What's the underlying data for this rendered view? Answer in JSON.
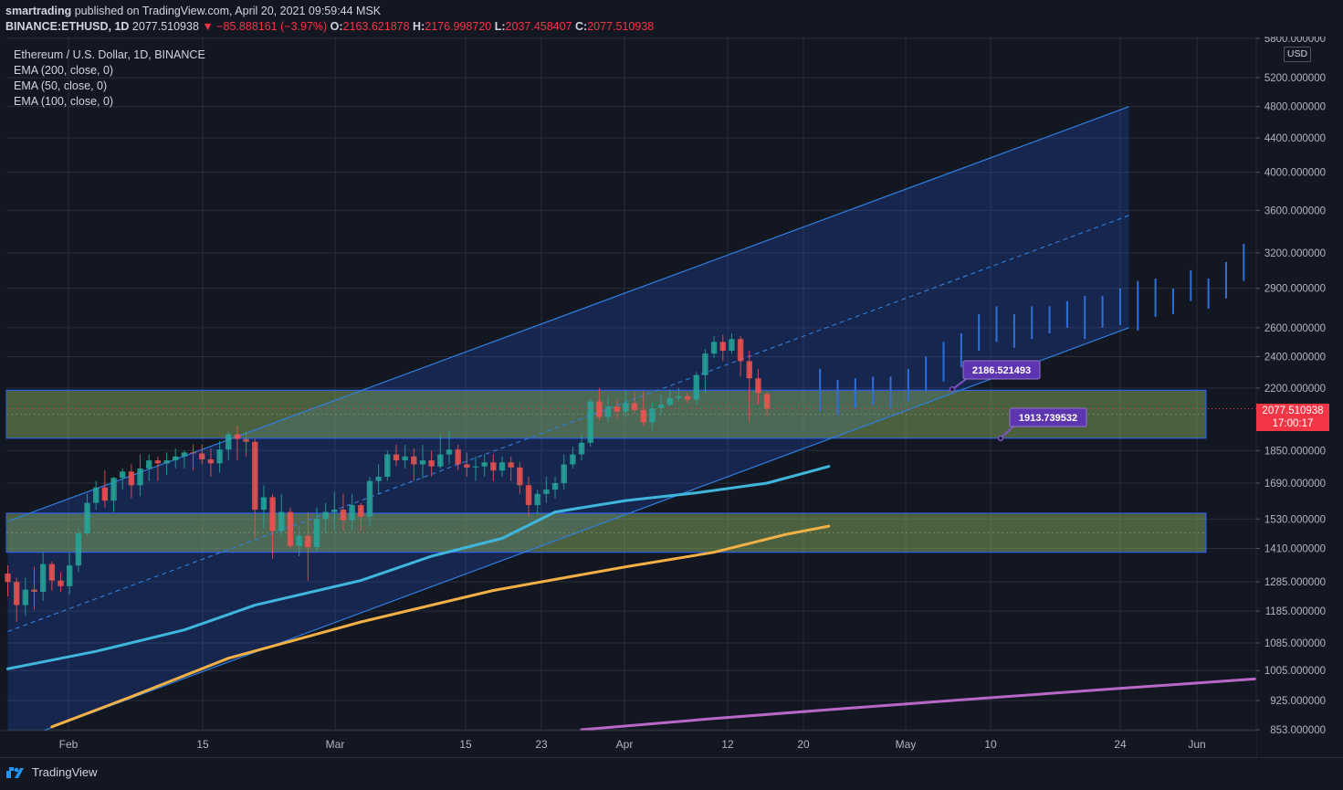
{
  "header": {
    "author": "smartrading",
    "published_text": " published on TradingView.com, April 20, 2021 09:59:44 MSK",
    "symbol": "BINANCE:ETHUSD, 1D",
    "last": "2077.510938",
    "change": "▼ −85.888161 (−3.97%)",
    "o_label": "O:",
    "o_value": "2163.621878",
    "h_label": "H:",
    "h_value": "2176.998720",
    "l_label": "L:",
    "l_value": "2037.458407",
    "c_label": "C:",
    "c_value": "2077.510938"
  },
  "legend": {
    "title": "Ethereum / U.S. Dollar, 1D, BINANCE",
    "ema200": "EMA (200, close, 0)",
    "ema50": "EMA (50, close, 0)",
    "ema100": "EMA (100, close, 0)"
  },
  "price_axis": {
    "currency": "USD",
    "ticks": [
      "853.000000",
      "925.000000",
      "1005.000000",
      "1085.000000",
      "1185.000000",
      "1285.000000",
      "1410.000000",
      "1530.000000",
      "1690.000000",
      "1850.000000",
      "2200.000000",
      "2400.000000",
      "2600.000000",
      "2900.000000",
      "3200.000000",
      "3600.000000",
      "4000.000000",
      "4400.000000",
      "4800.000000",
      "5200.000000",
      "5800.000000"
    ],
    "current_price": "2077.510938",
    "countdown": "17:00:17"
  },
  "time_axis": {
    "labels": [
      "Feb",
      "15",
      "Mar",
      "15",
      "23",
      "Apr",
      "12",
      "20",
      "May",
      "10",
      "24",
      "Jun"
    ]
  },
  "annotations": {
    "upper_label": "2186.521493",
    "lower_label": "1913.739532"
  },
  "footer": {
    "brand": "TradingView"
  },
  "colors": {
    "background": "#131722",
    "up": "#26a69a",
    "down": "#ef5350",
    "ema200": "#ba68c8",
    "ema50": "#3fb6dc",
    "ema100": "#f2b045",
    "channel": "#2962ff",
    "zone": "#6b8a48",
    "label_bg": "#5e35b1"
  },
  "chart_data": {
    "type": "candlestick",
    "symbol": "BINANCE:ETHUSD",
    "interval": "1D",
    "y_scale": "log",
    "ylim": [
      853,
      5800
    ],
    "x_axis_labels": [
      "Feb",
      "15",
      "Mar",
      "15",
      "23",
      "Apr",
      "12",
      "20",
      "May",
      "10",
      "24",
      "Jun"
    ],
    "candles_start": "2021-01-26",
    "ohlc": [
      [
        1315,
        1345,
        1235,
        1285
      ],
      [
        1285,
        1300,
        1150,
        1205
      ],
      [
        1205,
        1300,
        1170,
        1258
      ],
      [
        1258,
        1340,
        1190,
        1250
      ],
      [
        1250,
        1395,
        1220,
        1350
      ],
      [
        1350,
        1360,
        1255,
        1290
      ],
      [
        1290,
        1320,
        1250,
        1270
      ],
      [
        1270,
        1395,
        1240,
        1345
      ],
      [
        1345,
        1490,
        1320,
        1470
      ],
      [
        1470,
        1640,
        1460,
        1600
      ],
      [
        1600,
        1700,
        1570,
        1670
      ],
      [
        1670,
        1750,
        1580,
        1610
      ],
      [
        1610,
        1720,
        1560,
        1715
      ],
      [
        1715,
        1760,
        1660,
        1745
      ],
      [
        1745,
        1780,
        1620,
        1680
      ],
      [
        1680,
        1830,
        1630,
        1760
      ],
      [
        1760,
        1830,
        1700,
        1800
      ],
      [
        1800,
        1820,
        1700,
        1785
      ],
      [
        1785,
        1840,
        1730,
        1800
      ],
      [
        1800,
        1860,
        1760,
        1820
      ],
      [
        1820,
        1850,
        1760,
        1840
      ],
      [
        1840,
        1880,
        1750,
        1835
      ],
      [
        1835,
        1880,
        1780,
        1805
      ],
      [
        1805,
        1860,
        1720,
        1785
      ],
      [
        1785,
        1900,
        1740,
        1855
      ],
      [
        1855,
        1950,
        1800,
        1935
      ],
      [
        1935,
        1980,
        1800,
        1910
      ],
      [
        1910,
        1950,
        1820,
        1895
      ],
      [
        1895,
        1910,
        1450,
        1570
      ],
      [
        1570,
        1680,
        1490,
        1625
      ],
      [
        1625,
        1640,
        1370,
        1480
      ],
      [
        1480,
        1640,
        1460,
        1560
      ],
      [
        1560,
        1580,
        1410,
        1420
      ],
      [
        1420,
        1500,
        1380,
        1460
      ],
      [
        1460,
        1560,
        1290,
        1415
      ],
      [
        1415,
        1580,
        1400,
        1530
      ],
      [
        1530,
        1600,
        1470,
        1560
      ],
      [
        1560,
        1650,
        1480,
        1570
      ],
      [
        1570,
        1640,
        1480,
        1525
      ],
      [
        1525,
        1640,
        1480,
        1590
      ],
      [
        1590,
        1600,
        1480,
        1540
      ],
      [
        1540,
        1720,
        1500,
        1700
      ],
      [
        1700,
        1780,
        1640,
        1720
      ],
      [
        1720,
        1850,
        1700,
        1830
      ],
      [
        1830,
        1880,
        1770,
        1800
      ],
      [
        1800,
        1880,
        1760,
        1820
      ],
      [
        1820,
        1860,
        1700,
        1780
      ],
      [
        1780,
        1880,
        1710,
        1800
      ],
      [
        1800,
        1850,
        1720,
        1770
      ],
      [
        1770,
        1940,
        1760,
        1830
      ],
      [
        1830,
        1950,
        1780,
        1855
      ],
      [
        1855,
        1880,
        1750,
        1780
      ],
      [
        1780,
        1840,
        1720,
        1765
      ],
      [
        1765,
        1820,
        1700,
        1770
      ],
      [
        1770,
        1830,
        1720,
        1790
      ],
      [
        1790,
        1830,
        1700,
        1750
      ],
      [
        1750,
        1820,
        1720,
        1790
      ],
      [
        1790,
        1820,
        1700,
        1765
      ],
      [
        1765,
        1790,
        1640,
        1680
      ],
      [
        1680,
        1720,
        1540,
        1590
      ],
      [
        1590,
        1660,
        1550,
        1640
      ],
      [
        1640,
        1720,
        1600,
        1660
      ],
      [
        1660,
        1720,
        1620,
        1690
      ],
      [
        1690,
        1830,
        1660,
        1780
      ],
      [
        1780,
        1870,
        1760,
        1830
      ],
      [
        1830,
        1940,
        1800,
        1890
      ],
      [
        1890,
        2140,
        1870,
        2120
      ],
      [
        2120,
        2200,
        2010,
        2030
      ],
      [
        2030,
        2150,
        2000,
        2090
      ],
      [
        2090,
        2130,
        2020,
        2060
      ],
      [
        2060,
        2180,
        2030,
        2110
      ],
      [
        2110,
        2180,
        2050,
        2070
      ],
      [
        2070,
        2180,
        1980,
        2000
      ],
      [
        2000,
        2110,
        1960,
        2080
      ],
      [
        2080,
        2160,
        2040,
        2100
      ],
      [
        2100,
        2190,
        2090,
        2140
      ],
      [
        2140,
        2200,
        2120,
        2150
      ],
      [
        2150,
        2170,
        2110,
        2130
      ],
      [
        2130,
        2300,
        2100,
        2280
      ],
      [
        2280,
        2450,
        2170,
        2420
      ],
      [
        2420,
        2540,
        2390,
        2500
      ],
      [
        2500,
        2550,
        2370,
        2440
      ],
      [
        2440,
        2560,
        2420,
        2520
      ],
      [
        2520,
        2540,
        2270,
        2370
      ],
      [
        2370,
        2440,
        2000,
        2260
      ],
      [
        2260,
        2320,
        2100,
        2170
      ],
      [
        2163.62,
        2177.0,
        2037.46,
        2077.51
      ]
    ],
    "ema200": [
      [
        65,
        853
      ],
      [
        80,
        880
      ],
      [
        95,
        905
      ],
      [
        110,
        930
      ],
      [
        125,
        955
      ],
      [
        140,
        980
      ],
      [
        155,
        1005
      ],
      [
        170,
        1025
      ],
      [
        185,
        1045
      ],
      [
        200,
        1060
      ],
      [
        215,
        1080
      ],
      [
        230,
        1100
      ],
      [
        245,
        1120
      ],
      [
        260,
        1135
      ],
      [
        275,
        1152
      ],
      [
        285,
        1165
      ],
      [
        293,
        1185
      ]
    ],
    "ema50": [
      [
        0,
        1010
      ],
      [
        10,
        1060
      ],
      [
        20,
        1125
      ],
      [
        28,
        1205
      ],
      [
        40,
        1290
      ],
      [
        48,
        1380
      ],
      [
        56,
        1450
      ],
      [
        62,
        1560
      ],
      [
        70,
        1610
      ],
      [
        78,
        1645
      ],
      [
        86,
        1690
      ],
      [
        93,
        1770
      ]
    ],
    "ema100": [
      [
        5,
        860
      ],
      [
        14,
        935
      ],
      [
        25,
        1040
      ],
      [
        40,
        1150
      ],
      [
        55,
        1255
      ],
      [
        70,
        1340
      ],
      [
        80,
        1395
      ],
      [
        88,
        1465
      ],
      [
        93,
        1500
      ]
    ],
    "channel": {
      "upper_line": [
        [
          0,
          1520
        ],
        [
          127,
          4800
        ]
      ],
      "mid_line": [
        [
          0,
          1120
        ],
        [
          127,
          3550
        ]
      ],
      "lower_line": [
        [
          0,
          820
        ],
        [
          127,
          2600
        ]
      ],
      "box_extends_to_index": 127
    },
    "projection_bars": [
      [
        92,
        2060,
        2320
      ],
      [
        94,
        2040,
        2250
      ],
      [
        96,
        2080,
        2260
      ],
      [
        98,
        2100,
        2270
      ],
      [
        100,
        2080,
        2270
      ],
      [
        102,
        2120,
        2320
      ],
      [
        104,
        2180,
        2400
      ],
      [
        106,
        2240,
        2500
      ],
      [
        108,
        2330,
        2560
      ],
      [
        110,
        2440,
        2700
      ],
      [
        112,
        2500,
        2760
      ],
      [
        114,
        2460,
        2700
      ],
      [
        116,
        2520,
        2760
      ],
      [
        118,
        2560,
        2760
      ],
      [
        120,
        2600,
        2800
      ],
      [
        122,
        2520,
        2840
      ],
      [
        124,
        2600,
        2840
      ],
      [
        126,
        2620,
        2900
      ],
      [
        128,
        2580,
        2960
      ],
      [
        130,
        2680,
        2980
      ],
      [
        132,
        2700,
        2900
      ],
      [
        134,
        2800,
        3050
      ],
      [
        136,
        2740,
        2980
      ],
      [
        138,
        2820,
        3120
      ],
      [
        140,
        2960,
        3280
      ],
      [
        142,
        3060,
        3320
      ],
      [
        144,
        3020,
        3300
      ],
      [
        146,
        2960,
        3240
      ],
      [
        148,
        2460,
        3000
      ],
      [
        150,
        2480,
        2560
      ]
    ],
    "zones": [
      {
        "low": 1913.739532,
        "high": 2186.521493
      },
      {
        "low": 1395,
        "high": 1555
      }
    ],
    "price_labels": [
      {
        "value": 2186.521493,
        "text": "2186.521493"
      },
      {
        "value": 1913.739532,
        "text": "1913.739532"
      }
    ],
    "current_price": 2077.510938
  }
}
